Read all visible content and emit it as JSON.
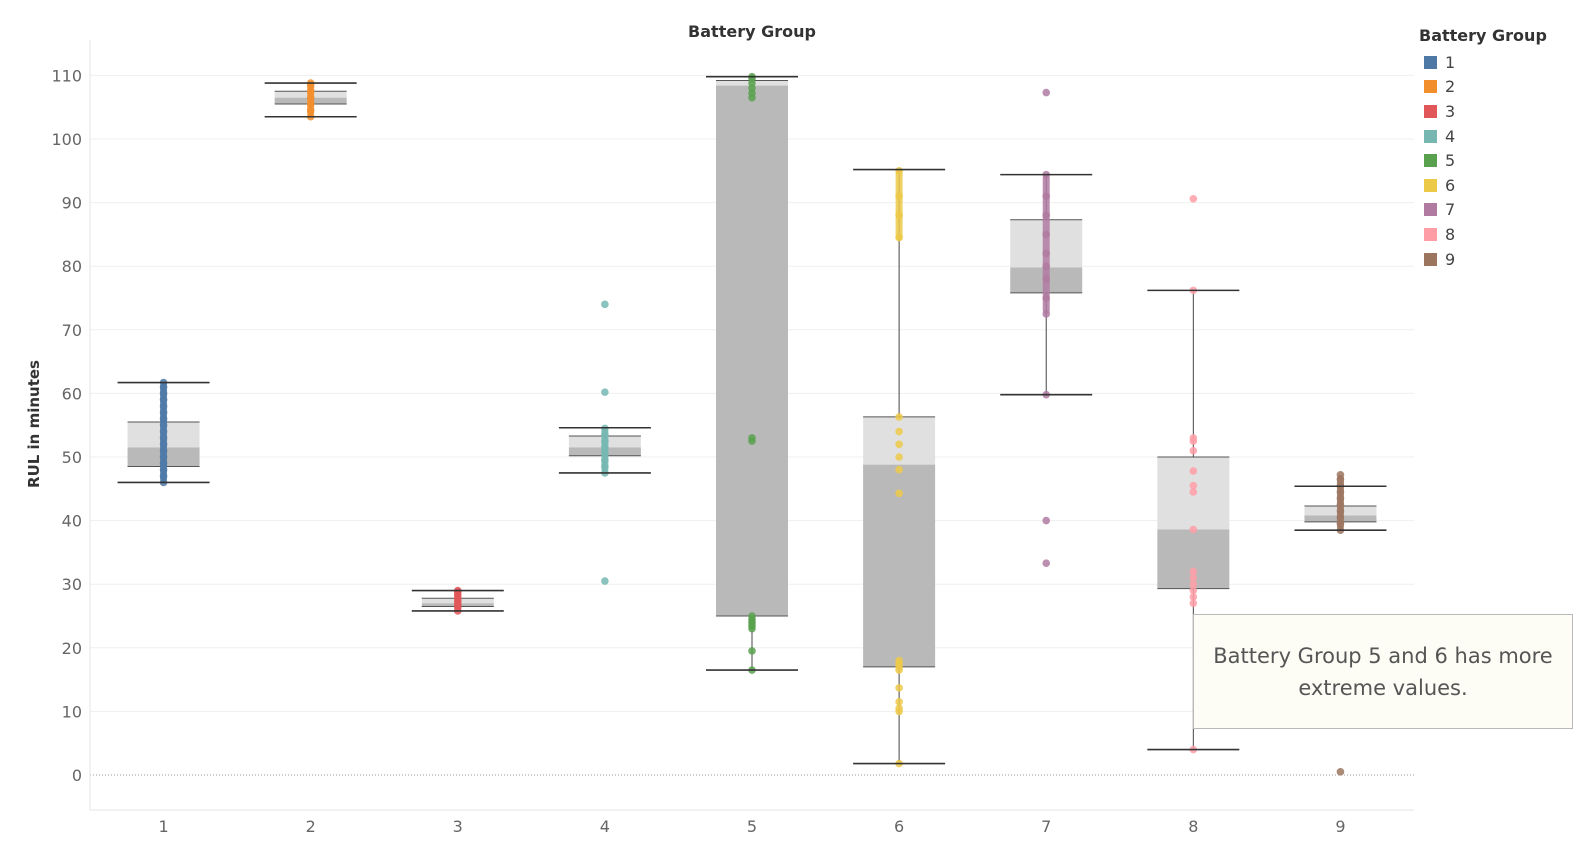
{
  "chart_data": {
    "type": "boxplot",
    "title": "Battery Group",
    "xlabel": "",
    "ylabel": "RUL in minutes",
    "ylim": [
      -5,
      115
    ],
    "yticks": [
      0,
      10,
      20,
      30,
      40,
      50,
      60,
      70,
      80,
      90,
      100,
      110
    ],
    "ytick_labels": [
      "0",
      "10",
      "20",
      "30",
      "40",
      "50",
      "60",
      "70",
      "80",
      "90",
      "100",
      "110"
    ],
    "grid": true,
    "zero_line": "dotted",
    "categories": [
      "1",
      "2",
      "3",
      "4",
      "5",
      "6",
      "7",
      "8",
      "9"
    ],
    "legend": {
      "title": "Battery Group",
      "position": "right",
      "entries": [
        "1",
        "2",
        "3",
        "4",
        "5",
        "6",
        "7",
        "8",
        "9"
      ]
    },
    "colors": {
      "1": "#4e79a7",
      "2": "#f28e2b",
      "3": "#e15759",
      "4": "#76b7b2",
      "5": "#59a14f",
      "6": "#edc948",
      "7": "#b07aa1",
      "8": "#ff9da7",
      "9": "#9c755f",
      "box_upper": "#e0e0e0",
      "box_lower": "#b9b9b9",
      "whisker": "#333333"
    },
    "boxes": [
      {
        "group": "1",
        "min": 46,
        "q1": 48.5,
        "median": 51.5,
        "q3": 55.5,
        "max": 61.7,
        "points": [
          46,
          47,
          48,
          49,
          50,
          51,
          52,
          53,
          54,
          55,
          56,
          57,
          58,
          59,
          60,
          61,
          61.7
        ],
        "dense": [
          46,
          61.7
        ]
      },
      {
        "group": "2",
        "min": 103.5,
        "q1": 105.5,
        "median": 106.5,
        "q3": 107.5,
        "max": 108.8,
        "points": [
          103.5,
          104.5,
          105.5,
          106.5,
          107.5,
          108.5,
          108.8
        ],
        "dense": [
          103.5,
          108.8
        ]
      },
      {
        "group": "3",
        "min": 25.8,
        "q1": 26.5,
        "median": 27,
        "q3": 27.8,
        "max": 29,
        "points": [
          25.8,
          26.3,
          26.8,
          27.3,
          27.8,
          28.3,
          28.8,
          29
        ],
        "dense": [
          25.8,
          29
        ]
      },
      {
        "group": "4",
        "min": 47.5,
        "q1": 50.2,
        "median": 51.5,
        "q3": 53.3,
        "max": 54.6,
        "points": [
          30.5,
          47.5,
          48.5,
          49.5,
          50.5,
          51.5,
          52.5,
          53.5,
          54.5,
          60.2,
          74
        ],
        "dense": [
          47.5,
          54.6
        ]
      },
      {
        "group": "5",
        "min": 16.5,
        "q1": 25,
        "median": 108.4,
        "q3": 109.2,
        "max": 109.8,
        "points": [
          16.5,
          19.5,
          23,
          23.5,
          24,
          24.5,
          25,
          52.5,
          53,
          106.5,
          107.2,
          108,
          108.8,
          109.5,
          109.8
        ],
        "dense": [
          22.8,
          25
        ]
      },
      {
        "group": "6",
        "min": 1.8,
        "q1": 17,
        "median": 48.8,
        "q3": 56.3,
        "max": 95.2,
        "points": [
          1.8,
          10,
          10.5,
          11.5,
          13.7,
          16.5,
          17,
          17.5,
          18,
          44.3,
          48,
          50,
          52,
          54,
          56.3,
          84.5,
          88,
          91,
          95
        ],
        "dense": [
          84,
          95.2
        ]
      },
      {
        "group": "7",
        "min": 59.8,
        "q1": 75.8,
        "median": 79.8,
        "q3": 87.3,
        "max": 94.4,
        "points": [
          33.3,
          40,
          59.8,
          72.5,
          75,
          78,
          80,
          82,
          85,
          88,
          91,
          94.4,
          107.3
        ],
        "dense": [
          72.5,
          94.4
        ]
      },
      {
        "group": "8",
        "min": 4,
        "q1": 29.3,
        "median": 38.6,
        "q3": 50,
        "max": 76.2,
        "points": [
          4,
          27,
          28,
          29,
          30,
          31,
          32,
          38.6,
          44.5,
          45.5,
          47.8,
          51,
          52.5,
          53,
          76.2,
          90.6
        ],
        "dense": []
      },
      {
        "group": "9",
        "min": 38.5,
        "q1": 39.8,
        "median": 40.8,
        "q3": 42.3,
        "max": 45.4,
        "points": [
          0.5,
          38.5,
          39.5,
          40.5,
          41.5,
          42.5,
          43.5,
          44.5,
          45.5,
          46.5,
          47.2
        ],
        "dense": [
          38.5,
          47.2
        ]
      }
    ]
  },
  "annotation": {
    "text": "Battery Group 5  and 6 has more extreme values."
  }
}
